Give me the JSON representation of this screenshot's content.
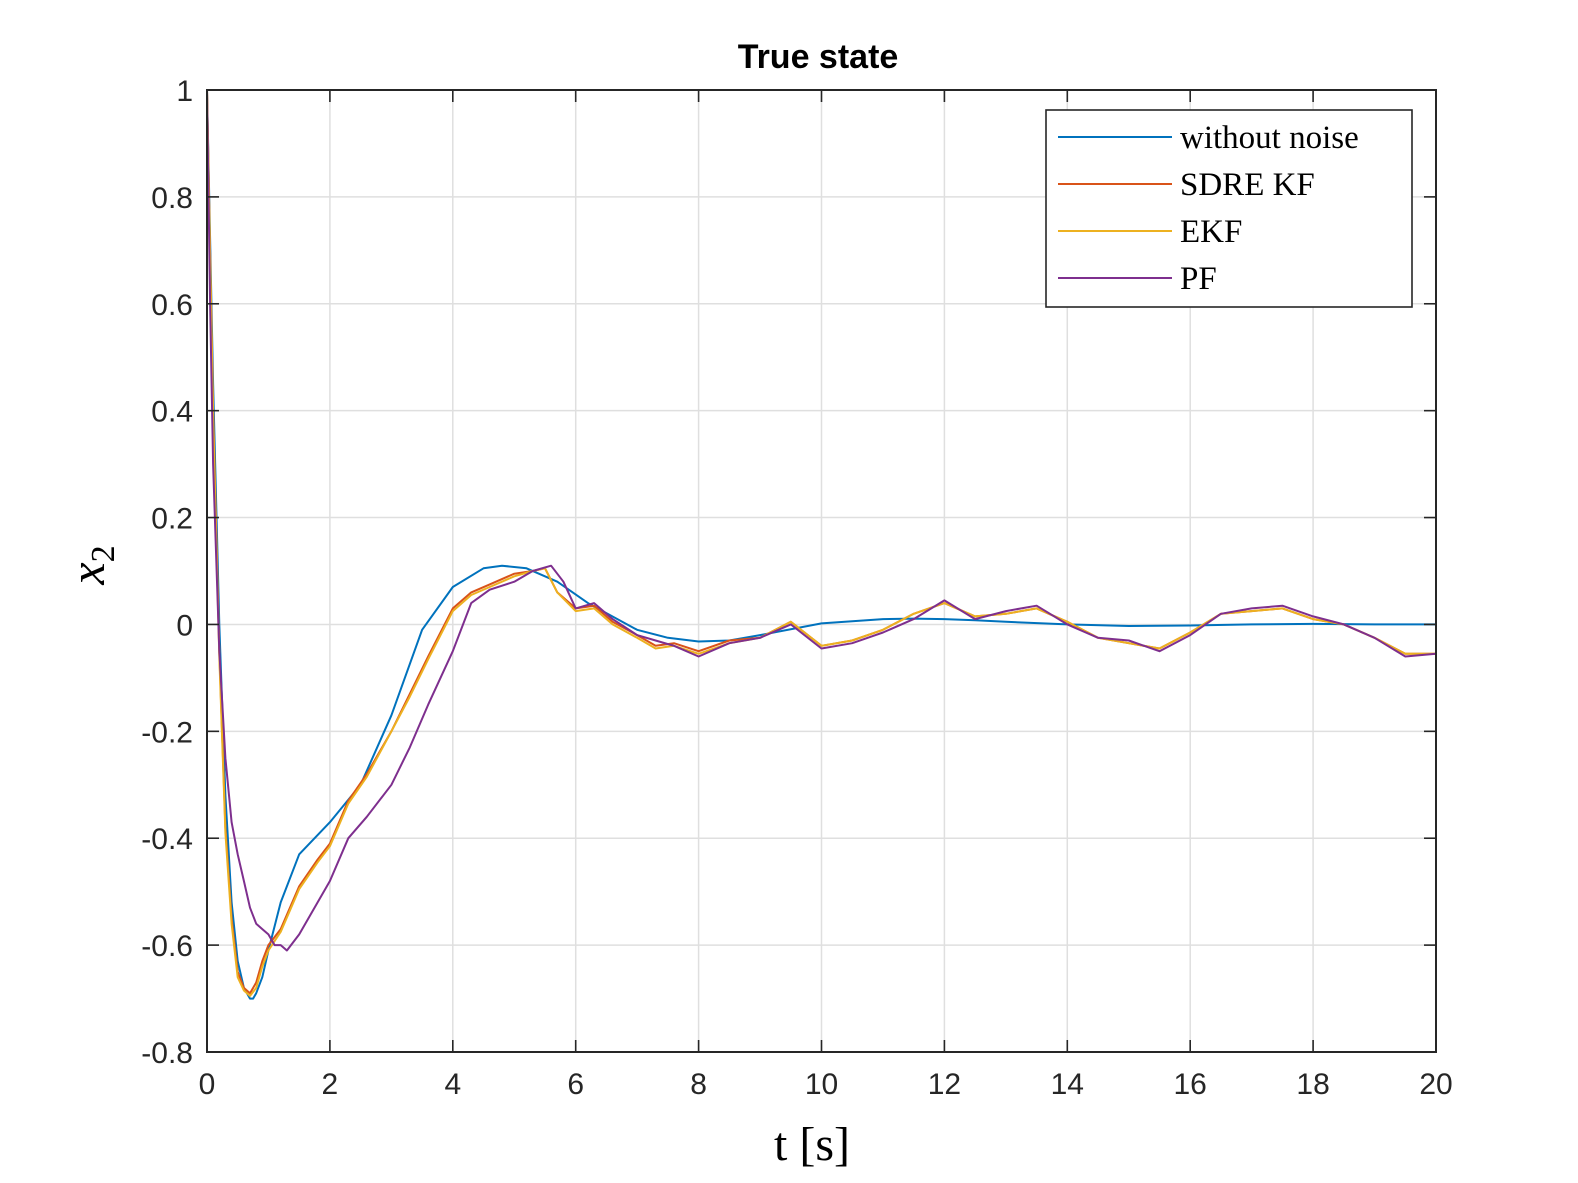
{
  "chart_data": {
    "type": "line",
    "title": "True state",
    "xlabel": "t [s]",
    "ylabel": "x",
    "ylabel_subscript": "2",
    "xlim": [
      0,
      20
    ],
    "ylim": [
      -0.8,
      1
    ],
    "xticks": [
      0,
      2,
      4,
      6,
      8,
      10,
      12,
      14,
      16,
      18,
      20
    ],
    "xtick_labels": [
      "0",
      "2",
      "4",
      "6",
      "8",
      "10",
      "12",
      "14",
      "16",
      "18",
      "20"
    ],
    "yticks": [
      -0.8,
      -0.6,
      -0.4,
      -0.2,
      0,
      0.2,
      0.4,
      0.6,
      0.8,
      1
    ],
    "ytick_labels": [
      "-0.8",
      "-0.6",
      "-0.4",
      "-0.2",
      "0",
      "0.2",
      "0.4",
      "0.6",
      "0.8",
      "1"
    ],
    "grid": true,
    "legend_position": "top-right",
    "series": [
      {
        "name": "without noise",
        "color": "#0072BD",
        "x": [
          0,
          0.1,
          0.2,
          0.3,
          0.4,
          0.5,
          0.6,
          0.7,
          0.75,
          0.8,
          0.9,
          1.0,
          1.2,
          1.5,
          2.0,
          2.5,
          3.0,
          3.5,
          4.0,
          4.5,
          4.8,
          5.2,
          5.7,
          6.2,
          7.0,
          7.5,
          8.0,
          8.5,
          9.0,
          10.0,
          11.0,
          11.5,
          12.0,
          12.5,
          13.0,
          14.0,
          15.0,
          16.0,
          17.0,
          18.0,
          19.0,
          20.0
        ],
        "y": [
          1.0,
          0.45,
          0.0,
          -0.32,
          -0.52,
          -0.63,
          -0.68,
          -0.7,
          -0.7,
          -0.69,
          -0.66,
          -0.61,
          -0.52,
          -0.43,
          -0.37,
          -0.3,
          -0.17,
          -0.01,
          0.07,
          0.105,
          0.11,
          0.105,
          0.08,
          0.04,
          -0.01,
          -0.025,
          -0.032,
          -0.03,
          -0.02,
          0.002,
          0.01,
          0.011,
          0.01,
          0.008,
          0.005,
          0.0,
          -0.003,
          -0.002,
          0.0,
          0.001,
          0.0,
          0.0
        ]
      },
      {
        "name": "SDRE KF",
        "color": "#D95319",
        "x": [
          0,
          0.1,
          0.2,
          0.3,
          0.4,
          0.5,
          0.6,
          0.7,
          0.8,
          0.9,
          1.0,
          1.2,
          1.5,
          1.8,
          2.0,
          2.3,
          2.6,
          3.0,
          3.3,
          3.6,
          4.0,
          4.3,
          4.6,
          5.0,
          5.3,
          5.5,
          5.7,
          6.0,
          6.3,
          6.6,
          7.0,
          7.3,
          7.6,
          8.0,
          8.5,
          9.0,
          9.5,
          10.0,
          10.5,
          11.0,
          11.5,
          12.0,
          12.5,
          13.0,
          13.5,
          14.0,
          14.5,
          15.0,
          15.5,
          16.0,
          16.5,
          17.0,
          17.5,
          18.0,
          18.5,
          19.0,
          19.5,
          20.0
        ],
        "y": [
          1.0,
          0.4,
          -0.05,
          -0.38,
          -0.55,
          -0.65,
          -0.68,
          -0.69,
          -0.67,
          -0.63,
          -0.6,
          -0.57,
          -0.49,
          -0.44,
          -0.41,
          -0.33,
          -0.28,
          -0.2,
          -0.13,
          -0.06,
          0.03,
          0.06,
          0.075,
          0.095,
          0.1,
          0.105,
          0.06,
          0.03,
          0.035,
          0.005,
          -0.02,
          -0.04,
          -0.035,
          -0.05,
          -0.03,
          -0.025,
          0.005,
          -0.04,
          -0.03,
          -0.01,
          0.02,
          0.04,
          0.015,
          0.02,
          0.03,
          0.005,
          -0.025,
          -0.035,
          -0.045,
          -0.015,
          0.02,
          0.025,
          0.03,
          0.01,
          0.0,
          -0.025,
          -0.055,
          -0.055
        ]
      },
      {
        "name": "EKF",
        "color": "#EDB120",
        "x": [
          0,
          0.1,
          0.2,
          0.3,
          0.4,
          0.5,
          0.6,
          0.7,
          0.8,
          0.9,
          1.0,
          1.2,
          1.5,
          1.8,
          2.0,
          2.3,
          2.6,
          3.0,
          3.3,
          3.6,
          4.0,
          4.3,
          4.6,
          5.0,
          5.3,
          5.5,
          5.7,
          6.0,
          6.3,
          6.6,
          7.0,
          7.3,
          7.6,
          8.0,
          8.5,
          9.0,
          9.5,
          10.0,
          10.5,
          11.0,
          11.5,
          12.0,
          12.5,
          13.0,
          13.5,
          14.0,
          14.5,
          15.0,
          15.5,
          16.0,
          16.5,
          17.0,
          17.5,
          18.0,
          18.5,
          19.0,
          19.5,
          20.0
        ],
        "y": [
          1.0,
          0.39,
          -0.06,
          -0.39,
          -0.56,
          -0.66,
          -0.685,
          -0.695,
          -0.68,
          -0.64,
          -0.61,
          -0.575,
          -0.495,
          -0.445,
          -0.415,
          -0.335,
          -0.285,
          -0.2,
          -0.135,
          -0.065,
          0.025,
          0.055,
          0.07,
          0.09,
          0.1,
          0.105,
          0.06,
          0.025,
          0.03,
          0.0,
          -0.025,
          -0.045,
          -0.04,
          -0.055,
          -0.035,
          -0.025,
          0.005,
          -0.04,
          -0.03,
          -0.01,
          0.02,
          0.04,
          0.015,
          0.02,
          0.03,
          0.005,
          -0.025,
          -0.035,
          -0.045,
          -0.015,
          0.02,
          0.025,
          0.03,
          0.01,
          0.0,
          -0.025,
          -0.055,
          -0.055
        ]
      },
      {
        "name": "PF",
        "color": "#7E2F8E",
        "x": [
          0,
          0.05,
          0.1,
          0.2,
          0.3,
          0.4,
          0.5,
          0.6,
          0.7,
          0.8,
          0.9,
          1.0,
          1.1,
          1.2,
          1.3,
          1.5,
          1.8,
          2.0,
          2.3,
          2.6,
          3.0,
          3.3,
          3.6,
          4.0,
          4.3,
          4.6,
          5.0,
          5.3,
          5.6,
          5.8,
          6.0,
          6.3,
          6.6,
          7.0,
          7.3,
          7.6,
          8.0,
          8.5,
          9.0,
          9.5,
          10.0,
          10.5,
          11.0,
          11.5,
          12.0,
          12.5,
          13.0,
          13.5,
          14.0,
          14.5,
          15.0,
          15.5,
          16.0,
          16.5,
          17.0,
          17.5,
          18.0,
          18.5,
          19.0,
          19.5,
          20.0
        ],
        "y": [
          1.0,
          0.6,
          0.3,
          -0.05,
          -0.25,
          -0.37,
          -0.43,
          -0.48,
          -0.53,
          -0.56,
          -0.57,
          -0.58,
          -0.6,
          -0.6,
          -0.61,
          -0.58,
          -0.52,
          -0.48,
          -0.4,
          -0.36,
          -0.3,
          -0.23,
          -0.15,
          -0.05,
          0.04,
          0.065,
          0.08,
          0.1,
          0.11,
          0.08,
          0.03,
          0.04,
          0.01,
          -0.02,
          -0.03,
          -0.04,
          -0.06,
          -0.035,
          -0.025,
          0.0,
          -0.045,
          -0.035,
          -0.015,
          0.01,
          0.045,
          0.01,
          0.025,
          0.035,
          0.0,
          -0.025,
          -0.03,
          -0.05,
          -0.02,
          0.02,
          0.03,
          0.035,
          0.015,
          0.0,
          -0.025,
          -0.06,
          -0.055
        ]
      }
    ]
  }
}
